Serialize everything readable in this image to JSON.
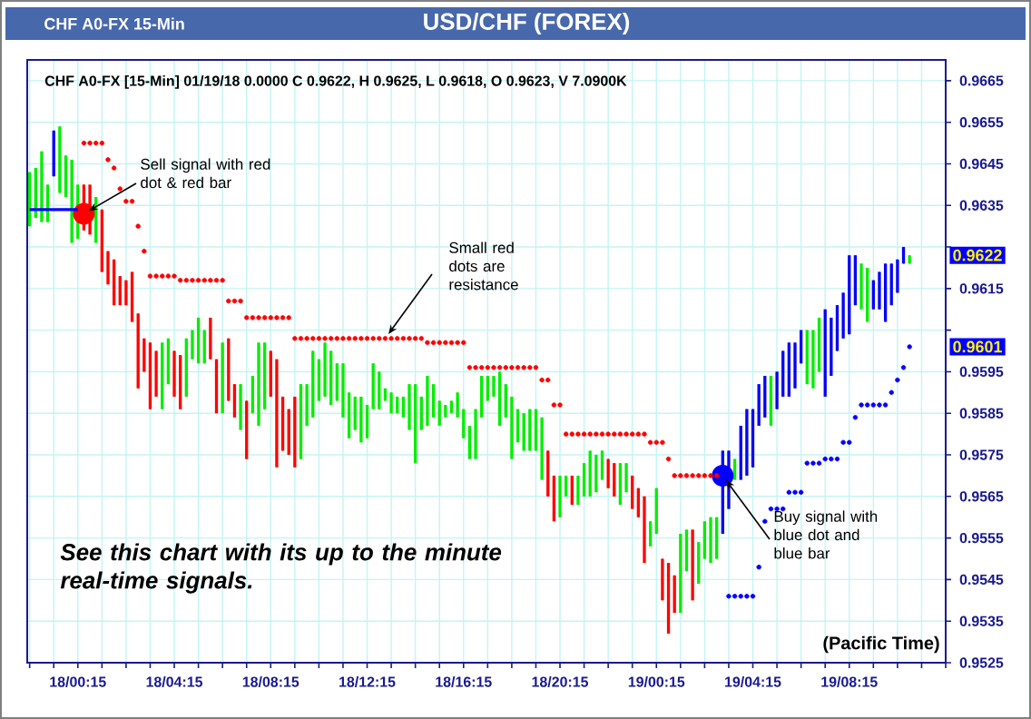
{
  "chart_data": {
    "type": "candlestick",
    "title": "USD/CHF (FOREX)",
    "subtitle": "CHF A0-FX [15-Min] 01/19/18  0.0000 C 0.9622, H 0.9625, L 0.9618, O 0.9623, V 7.0900K",
    "annotations": [
      "CHF A0-FX 15-Min",
      "Sell signal with red dot & red bar",
      "Small red dots are resistance",
      "Buy signal with blue dot and blue bar",
      "See this chart with its up to the minute real-time signals.",
      "(Pacific Time)",
      "0.9622",
      "0.9601"
    ],
    "categories": [
      null,
      null,
      null,
      null,
      null,
      null,
      null,
      null,
      "18/00:15",
      null,
      null,
      null,
      null,
      null,
      null,
      null,
      null,
      null,
      null,
      null,
      null,
      null,
      null,
      null,
      "18/04:15",
      null,
      null,
      null,
      null,
      null,
      null,
      null,
      null,
      null,
      null,
      null,
      null,
      null,
      null,
      null,
      "18/08:15",
      null,
      null,
      null,
      null,
      null,
      null,
      null,
      null,
      null,
      null,
      null,
      null,
      null,
      null,
      null,
      "18/12:15",
      null,
      null,
      null,
      null,
      null,
      null,
      null,
      null,
      null,
      null,
      null,
      null,
      null,
      null,
      null,
      "18/16:15",
      null,
      null,
      null,
      null,
      null,
      null,
      null,
      null,
      null,
      null,
      null,
      null,
      null,
      null,
      null,
      "18/20:15",
      null,
      null,
      null,
      null,
      null,
      null,
      null,
      null,
      null,
      null,
      null,
      null,
      null,
      null,
      null,
      "19/00:15",
      null,
      null,
      null,
      null,
      null,
      null,
      null,
      null,
      null,
      null,
      null,
      null,
      null,
      null,
      null,
      "19/04:15",
      null,
      null,
      null,
      null,
      null,
      null,
      null,
      null,
      null,
      null,
      null,
      null,
      null,
      null,
      null,
      "19/08:15",
      null,
      null,
      null,
      null,
      null,
      null,
      null,
      null,
      null,
      null
    ],
    "ohlc": [
      [
        0.963,
        0.9643,
        0.963,
        0.9643
      ],
      [
        0.9632,
        0.9644,
        0.9632,
        0.9644
      ],
      [
        0.9631,
        0.9648,
        0.9631,
        0.9648
      ],
      [
        0.9631,
        0.964,
        0.9631,
        0.964
      ],
      [
        0.9642,
        0.9653,
        0.9642,
        0.9653
      ],
      [
        0.9638,
        0.9654,
        0.9638,
        0.9654
      ],
      [
        0.9637,
        0.9647,
        0.9637,
        0.9647
      ],
      [
        0.9626,
        0.9646,
        0.9626,
        0.9646
      ],
      [
        0.9627,
        0.964,
        0.9627,
        0.964
      ],
      [
        0.964,
        0.964,
        0.9629,
        0.9629
      ],
      [
        0.964,
        0.964,
        0.9628,
        0.9628
      ],
      [
        0.9626,
        0.9637,
        0.9626,
        0.9637
      ],
      [
        0.9634,
        0.9634,
        0.9619,
        0.9619
      ],
      [
        0.9624,
        0.9624,
        0.9616,
        0.9616
      ],
      [
        0.9622,
        0.9622,
        0.9611,
        0.9611
      ],
      [
        0.9618,
        0.9618,
        0.9611,
        0.9611
      ],
      [
        0.9617,
        0.9617,
        0.9611,
        0.9611
      ],
      [
        0.9619,
        0.9619,
        0.9607,
        0.9607
      ],
      [
        0.9609,
        0.9609,
        0.9591,
        0.9591
      ],
      [
        0.9603,
        0.9603,
        0.9595,
        0.9595
      ],
      [
        0.9602,
        0.9602,
        0.9586,
        0.9586
      ],
      [
        0.96,
        0.96,
        0.9589,
        0.9589
      ],
      [
        0.9586,
        0.9602,
        0.9586,
        0.9602
      ],
      [
        0.9592,
        0.9603,
        0.9592,
        0.9603
      ],
      [
        0.96,
        0.96,
        0.9589,
        0.9589
      ],
      [
        0.9599,
        0.9599,
        0.9586,
        0.9586
      ],
      [
        0.9589,
        0.9603,
        0.9589,
        0.9603
      ],
      [
        0.9598,
        0.9605,
        0.9598,
        0.9605
      ],
      [
        0.9597,
        0.9608,
        0.9597,
        0.9608
      ],
      [
        0.9597,
        0.9605,
        0.9597,
        0.9605
      ],
      [
        0.9608,
        0.9608,
        0.9598,
        0.9598
      ],
      [
        0.9598,
        0.9598,
        0.9585,
        0.9585
      ],
      [
        0.9585,
        0.9602,
        0.9585,
        0.9602
      ],
      [
        0.9603,
        0.9603,
        0.9588,
        0.9588
      ],
      [
        0.9592,
        0.9592,
        0.9584,
        0.9584
      ],
      [
        0.9581,
        0.9592,
        0.9581,
        0.9592
      ],
      [
        0.9588,
        0.9588,
        0.9574,
        0.9574
      ],
      [
        0.9585,
        0.9594,
        0.9585,
        0.9594
      ],
      [
        0.9582,
        0.9602,
        0.9582,
        0.9602
      ],
      [
        0.9586,
        0.9602,
        0.9586,
        0.9602
      ],
      [
        0.96,
        0.96,
        0.9589,
        0.9589
      ],
      [
        0.9598,
        0.9598,
        0.9572,
        0.9572
      ],
      [
        0.9589,
        0.9589,
        0.9576,
        0.9576
      ],
      [
        0.9586,
        0.9586,
        0.9575,
        0.9575
      ],
      [
        0.9589,
        0.9589,
        0.9572,
        0.9572
      ],
      [
        0.9574,
        0.9592,
        0.9574,
        0.9592
      ],
      [
        0.9582,
        0.9592,
        0.9582,
        0.9592
      ],
      [
        0.9584,
        0.96,
        0.9584,
        0.96
      ],
      [
        0.9588,
        0.9598,
        0.9588,
        0.9598
      ],
      [
        0.9589,
        0.9602,
        0.9589,
        0.9602
      ],
      [
        0.9587,
        0.96,
        0.9587,
        0.96
      ],
      [
        0.9588,
        0.9597,
        0.9588,
        0.9597
      ],
      [
        0.9584,
        0.9597,
        0.9584,
        0.9597
      ],
      [
        0.9579,
        0.959,
        0.9579,
        0.959
      ],
      [
        0.9581,
        0.9589,
        0.9581,
        0.9589
      ],
      [
        0.9578,
        0.9589,
        0.9578,
        0.9589
      ],
      [
        0.9579,
        0.9587,
        0.9579,
        0.9587
      ],
      [
        0.9586,
        0.9597,
        0.9586,
        0.9597
      ],
      [
        0.9586,
        0.9595,
        0.9586,
        0.9595
      ],
      [
        0.9588,
        0.9591,
        0.9588,
        0.9591
      ],
      [
        0.9585,
        0.959,
        0.9585,
        0.959
      ],
      [
        0.9585,
        0.9589,
        0.9585,
        0.9589
      ],
      [
        0.9584,
        0.9589,
        0.9584,
        0.9589
      ],
      [
        0.9581,
        0.9592,
        0.9581,
        0.9592
      ],
      [
        0.9573,
        0.9592,
        0.9573,
        0.9592
      ],
      [
        0.9581,
        0.9589,
        0.9581,
        0.9589
      ],
      [
        0.9582,
        0.9594,
        0.9582,
        0.9594
      ],
      [
        0.9584,
        0.9592,
        0.9584,
        0.9592
      ],
      [
        0.9582,
        0.9588,
        0.9582,
        0.9588
      ],
      [
        0.9584,
        0.9587,
        0.9584,
        0.9587
      ],
      [
        0.9585,
        0.9588,
        0.9585,
        0.9588
      ],
      [
        0.9584,
        0.959,
        0.9584,
        0.959
      ],
      [
        0.9579,
        0.9586,
        0.9579,
        0.9586
      ],
      [
        0.9574,
        0.9582,
        0.9574,
        0.9582
      ],
      [
        0.9574,
        0.9586,
        0.9574,
        0.9586
      ],
      [
        0.9584,
        0.9594,
        0.9584,
        0.9594
      ],
      [
        0.9588,
        0.9594,
        0.9588,
        0.9594
      ],
      [
        0.9589,
        0.9594,
        0.9589,
        0.9594
      ],
      [
        0.9582,
        0.9595,
        0.9582,
        0.9595
      ],
      [
        0.9584,
        0.9592,
        0.9584,
        0.9592
      ],
      [
        0.9574,
        0.9589,
        0.9574,
        0.9589
      ],
      [
        0.9578,
        0.9586,
        0.9578,
        0.9586
      ],
      [
        0.9576,
        0.9585,
        0.9576,
        0.9585
      ],
      [
        0.9576,
        0.9586,
        0.9576,
        0.9586
      ],
      [
        0.9576,
        0.9586,
        0.9576,
        0.9586
      ],
      [
        0.9569,
        0.9584,
        0.9569,
        0.9584
      ],
      [
        0.9576,
        0.9576,
        0.9565,
        0.9565
      ],
      [
        0.957,
        0.957,
        0.9559,
        0.9559
      ],
      [
        0.956,
        0.957,
        0.956,
        0.957
      ],
      [
        0.9565,
        0.957,
        0.9565,
        0.957
      ],
      [
        0.957,
        0.957,
        0.9563,
        0.9563
      ],
      [
        0.9563,
        0.957,
        0.9563,
        0.957
      ],
      [
        0.9565,
        0.9573,
        0.9565,
        0.9573
      ],
      [
        0.9565,
        0.9576,
        0.9565,
        0.9576
      ],
      [
        0.9566,
        0.9575,
        0.9566,
        0.9575
      ],
      [
        0.9569,
        0.9576,
        0.9569,
        0.9576
      ],
      [
        0.9574,
        0.9574,
        0.9567,
        0.9567
      ],
      [
        0.9573,
        0.9573,
        0.9565,
        0.9565
      ],
      [
        0.9563,
        0.9573,
        0.9563,
        0.9573
      ],
      [
        0.9566,
        0.9573,
        0.9566,
        0.9573
      ],
      [
        0.957,
        0.957,
        0.9562,
        0.9562
      ],
      [
        0.9567,
        0.9567,
        0.956,
        0.956
      ],
      [
        0.9565,
        0.9565,
        0.9549,
        0.9549
      ],
      [
        0.9553,
        0.9559,
        0.9553,
        0.9559
      ],
      [
        0.9556,
        0.9567,
        0.9556,
        0.9567
      ],
      [
        0.955,
        0.955,
        0.954,
        0.954
      ],
      [
        0.9549,
        0.9549,
        0.9532,
        0.9532
      ],
      [
        0.9546,
        0.9546,
        0.9537,
        0.9537
      ],
      [
        0.9537,
        0.9556,
        0.9537,
        0.9556
      ],
      [
        0.9547,
        0.9557,
        0.9547,
        0.9557
      ],
      [
        0.9557,
        0.9557,
        0.954,
        0.954
      ],
      [
        0.9544,
        0.9554,
        0.9544,
        0.9554
      ],
      [
        0.955,
        0.9559,
        0.955,
        0.9559
      ],
      [
        0.9549,
        0.956,
        0.9549,
        0.956
      ],
      [
        0.955,
        0.956,
        0.955,
        0.956
      ],
      [
        0.9556,
        0.9576,
        0.9556,
        0.9576
      ],
      [
        0.9562,
        0.9576,
        0.9562,
        0.9576
      ],
      [
        0.9569,
        0.9574,
        0.9569,
        0.9574
      ],
      [
        0.9569,
        0.9582,
        0.9569,
        0.9582
      ],
      [
        0.957,
        0.9586,
        0.957,
        0.9586
      ],
      [
        0.9572,
        0.9586,
        0.9572,
        0.9586
      ],
      [
        0.9582,
        0.9592,
        0.9582,
        0.9592
      ],
      [
        0.9584,
        0.9594,
        0.9584,
        0.9594
      ],
      [
        0.9582,
        0.9594,
        0.9582,
        0.9594
      ],
      [
        0.9586,
        0.9595,
        0.9586,
        0.9595
      ],
      [
        0.9589,
        0.96,
        0.9589,
        0.96
      ],
      [
        0.9589,
        0.9602,
        0.9589,
        0.9602
      ],
      [
        0.9591,
        0.9602,
        0.9591,
        0.9602
      ],
      [
        0.9597,
        0.9605,
        0.9597,
        0.9605
      ],
      [
        0.9592,
        0.9605,
        0.9592,
        0.9605
      ],
      [
        0.9591,
        0.9605,
        0.9591,
        0.9605
      ],
      [
        0.9595,
        0.9608,
        0.9595,
        0.9608
      ],
      [
        0.9589,
        0.961,
        0.9589,
        0.961
      ],
      [
        0.9594,
        0.9608,
        0.9594,
        0.9608
      ],
      [
        0.96,
        0.9611,
        0.96,
        0.9611
      ],
      [
        0.9603,
        0.9614,
        0.9603,
        0.9614
      ],
      [
        0.9604,
        0.9623,
        0.9604,
        0.9623
      ],
      [
        0.9611,
        0.9623,
        0.9611,
        0.9623
      ],
      [
        0.961,
        0.9621,
        0.961,
        0.9621
      ],
      [
        0.9607,
        0.962,
        0.9607,
        0.962
      ],
      [
        0.961,
        0.9617,
        0.961,
        0.9617
      ],
      [
        0.961,
        0.9619,
        0.961,
        0.9619
      ],
      [
        0.9607,
        0.9621,
        0.9607,
        0.9621
      ],
      [
        0.9611,
        0.9621,
        0.9611,
        0.9621
      ],
      [
        0.9614,
        0.9622,
        0.9614,
        0.9622
      ],
      [
        0.9621,
        0.9625,
        0.9621,
        0.9625
      ],
      [
        0.9621,
        0.9623,
        0.9621,
        0.9623
      ]
    ],
    "colors": [
      "#00ee00",
      "#00ee00",
      "#00ee00",
      "#00ee00",
      "#0000ff",
      "#00ee00",
      "#00ee00",
      "#00ee00",
      "#00ee00",
      "#ff0000",
      "#ff0000",
      "#00ee00",
      "#ff0000",
      "#ff0000",
      "#ff0000",
      "#ff0000",
      "#ff0000",
      "#ff0000",
      "#ff0000",
      "#ff0000",
      "#ff0000",
      "#ff0000",
      "#00ee00",
      "#00ee00",
      "#ff0000",
      "#ff0000",
      "#00ee00",
      "#00ee00",
      "#00ee00",
      "#00ee00",
      "#ff0000",
      "#ff0000",
      "#00ee00",
      "#ff0000",
      "#ff0000",
      "#00ee00",
      "#ff0000",
      "#00ee00",
      "#00ee00",
      "#00ee00",
      "#ff0000",
      "#ff0000",
      "#ff0000",
      "#ff0000",
      "#ff0000",
      "#00ee00",
      "#00ee00",
      "#00ee00",
      "#00ee00",
      "#00ee00",
      "#00ee00",
      "#00ee00",
      "#00ee00",
      "#00ee00",
      "#00ee00",
      "#00ee00",
      "#00ee00",
      "#00ee00",
      "#00ee00",
      "#00ee00",
      "#00ee00",
      "#00ee00",
      "#00ee00",
      "#00ee00",
      "#00ee00",
      "#00ee00",
      "#00ee00",
      "#00ee00",
      "#00ee00",
      "#00ee00",
      "#00ee00",
      "#00ee00",
      "#00ee00",
      "#00ee00",
      "#00ee00",
      "#00ee00",
      "#00ee00",
      "#00ee00",
      "#00ee00",
      "#00ee00",
      "#00ee00",
      "#00ee00",
      "#00ee00",
      "#00ee00",
      "#00ee00",
      "#00ee00",
      "#ff0000",
      "#ff0000",
      "#00ee00",
      "#00ee00",
      "#ff0000",
      "#00ee00",
      "#00ee00",
      "#00ee00",
      "#00ee00",
      "#00ee00",
      "#ff0000",
      "#ff0000",
      "#00ee00",
      "#00ee00",
      "#ff0000",
      "#ff0000",
      "#ff0000",
      "#00ee00",
      "#00ee00",
      "#ff0000",
      "#ff0000",
      "#ff0000",
      "#00ee00",
      "#00ee00",
      "#ff0000",
      "#00ee00",
      "#00ee00",
      "#00ee00",
      "#00ee00",
      "#0000ff",
      "#0000ff",
      "#00ee00",
      "#0000ff",
      "#0000ff",
      "#0000ff",
      "#0000ff",
      "#0000ff",
      "#00ee00",
      "#0000ff",
      "#0000ff",
      "#0000ff",
      "#0000ff",
      "#0000ff",
      "#00ee00",
      "#00ee00",
      "#00ee00",
      "#0000ff",
      "#0000ff",
      "#0000ff",
      "#0000ff",
      "#0000ff",
      "#0000ff",
      "#00ee00",
      "#00ee00",
      "#0000ff",
      "#0000ff",
      "#0000ff",
      "#0000ff",
      "#0000ff",
      "#0000ff",
      "#00ee00"
    ],
    "series": [
      {
        "type": "scatter",
        "marker": "circle",
        "color": "#ff0000",
        "values": [
          null,
          null,
          null,
          null,
          null,
          null,
          null,
          null,
          null,
          0.965,
          0.965,
          0.965,
          0.965,
          0.9646,
          0.9644,
          0.9639,
          0.9636,
          0.9636,
          0.963,
          0.9624,
          0.9618,
          0.9618,
          0.9618,
          0.9618,
          0.9618,
          0.9617,
          0.9617,
          0.9617,
          0.9617,
          0.9617,
          0.9617,
          0.9617,
          0.9617,
          0.9612,
          0.9612,
          0.9612,
          0.9608,
          0.9608,
          0.9608,
          0.9608,
          0.9608,
          0.9608,
          0.9608,
          0.9608,
          0.9603,
          0.9603,
          0.9603,
          0.9603,
          0.9603,
          0.9603,
          0.9603,
          0.9603,
          0.9603,
          0.9603,
          0.9603,
          0.9603,
          0.9603,
          0.9603,
          0.9603,
          0.9603,
          0.9603,
          0.9603,
          0.9603,
          0.9603,
          0.9603,
          0.9603,
          0.9602,
          0.9602,
          0.9602,
          0.9602,
          0.9602,
          0.9602,
          0.9602,
          0.9596,
          0.9596,
          0.9596,
          0.9596,
          0.9596,
          0.9596,
          0.9596,
          0.9596,
          0.9596,
          0.9596,
          0.9596,
          0.9596,
          0.9593,
          0.9593,
          0.9587,
          0.9587,
          0.958,
          0.958,
          0.958,
          0.958,
          0.958,
          0.958,
          0.958,
          0.958,
          0.958,
          0.958,
          0.958,
          0.958,
          0.958,
          0.958,
          0.9578,
          0.9578,
          0.9578,
          0.9574,
          0.957,
          0.957,
          0.957,
          0.957,
          0.957,
          0.957,
          0.957,
          0.957,
          null,
          null,
          null,
          null,
          null,
          null,
          null,
          null,
          null,
          null,
          null,
          null,
          null,
          null,
          null,
          null,
          null,
          null,
          null,
          null,
          null,
          null,
          null,
          null,
          null,
          null,
          null,
          null,
          null,
          null,
          null,
          null
        ]
      },
      {
        "type": "scatter",
        "marker": "circle",
        "color": "#0000ff",
        "values": [
          null,
          null,
          null,
          null,
          null,
          null,
          null,
          null,
          null,
          null,
          null,
          null,
          null,
          null,
          null,
          null,
          null,
          null,
          null,
          null,
          null,
          null,
          null,
          null,
          null,
          null,
          null,
          null,
          null,
          null,
          null,
          null,
          null,
          null,
          null,
          null,
          null,
          null,
          null,
          null,
          null,
          null,
          null,
          null,
          null,
          null,
          null,
          null,
          null,
          null,
          null,
          null,
          null,
          null,
          null,
          null,
          null,
          null,
          null,
          null,
          null,
          null,
          null,
          null,
          null,
          null,
          null,
          null,
          null,
          null,
          null,
          null,
          null,
          null,
          null,
          null,
          null,
          null,
          null,
          null,
          null,
          null,
          null,
          null,
          null,
          null,
          null,
          null,
          null,
          null,
          null,
          null,
          null,
          null,
          null,
          null,
          null,
          null,
          null,
          null,
          null,
          null,
          null,
          null,
          null,
          null,
          null,
          null,
          null,
          null,
          null,
          null,
          null,
          null,
          null,
          null,
          0.9541,
          0.9541,
          0.9541,
          0.9541,
          0.9541,
          0.9548,
          0.9559,
          0.9562,
          0.9562,
          0.9562,
          0.9566,
          0.9566,
          0.9566,
          0.9573,
          0.9573,
          0.9573,
          0.9574,
          0.9574,
          0.9574,
          0.9578,
          0.9578,
          0.9584,
          0.9587,
          0.9587,
          0.9587,
          0.9587,
          0.9587,
          0.959,
          0.9593,
          0.9596,
          0.9601
        ]
      },
      {
        "type": "bubble",
        "color": "#ff0000",
        "values": [
          null,
          null,
          null,
          null,
          null,
          null,
          null,
          null,
          null,
          0.9633,
          null,
          null,
          null,
          null,
          null,
          null,
          null,
          null,
          null,
          null,
          null,
          null,
          null,
          null,
          null,
          null,
          null,
          null,
          null,
          null,
          null,
          null,
          null,
          null,
          null,
          null,
          null,
          null,
          null,
          null,
          null,
          null,
          null,
          null,
          null,
          null,
          null,
          null,
          null,
          null,
          null,
          null,
          null,
          null,
          null,
          null,
          null,
          null,
          null,
          null,
          null,
          null,
          null,
          null,
          null,
          null,
          null,
          null,
          null,
          null,
          null,
          null,
          null,
          null,
          null,
          null,
          null,
          null,
          null,
          null,
          null,
          null,
          null,
          null,
          null,
          null,
          null,
          null,
          null,
          null,
          null,
          null,
          null,
          null,
          null,
          null,
          null,
          null,
          null,
          null,
          null,
          null,
          null,
          null,
          null,
          null,
          null,
          null,
          null,
          null,
          null,
          null,
          null,
          null,
          null,
          null,
          null,
          null,
          null,
          null,
          null,
          null,
          null,
          null,
          null,
          null,
          null,
          null,
          null,
          null,
          null,
          null,
          null,
          null,
          null,
          null,
          null,
          null,
          null,
          null,
          null,
          null,
          null,
          null,
          null,
          null,
          null
        ],
        "sizes": [
          null,
          null,
          null,
          null,
          null,
          null,
          null,
          null,
          null,
          1,
          null,
          null,
          null,
          null,
          null,
          null,
          null,
          null,
          null,
          null,
          null,
          null,
          null,
          null,
          null,
          null,
          null,
          null,
          null,
          null,
          null,
          null,
          null,
          null,
          null,
          null,
          null,
          null,
          null,
          null,
          null,
          null,
          null,
          null,
          null,
          null,
          null,
          null,
          null,
          null,
          null,
          null,
          null,
          null,
          null,
          null,
          null,
          null,
          null,
          null,
          null,
          null,
          null,
          null,
          null,
          null,
          null,
          null,
          null,
          null,
          null,
          null,
          null,
          null,
          null,
          null,
          null,
          null,
          null,
          null,
          null,
          null,
          null,
          null,
          null,
          null,
          null,
          null,
          null,
          null,
          null,
          null,
          null,
          null,
          null,
          null,
          null,
          null,
          null,
          null,
          null,
          null,
          null,
          null,
          null,
          null,
          null,
          null,
          null,
          null,
          null,
          null,
          null,
          null,
          null,
          null,
          null,
          null,
          null,
          null,
          null,
          null,
          null,
          null,
          null,
          null,
          null,
          null,
          null,
          null,
          null,
          null,
          null,
          null,
          null,
          null,
          null,
          null,
          null,
          null,
          null,
          null,
          null,
          null,
          null,
          null,
          null
        ]
      },
      {
        "type": "bubble",
        "color": "#0000ff",
        "values": [
          null,
          null,
          null,
          null,
          null,
          null,
          null,
          null,
          null,
          null,
          null,
          null,
          null,
          null,
          null,
          null,
          null,
          null,
          null,
          null,
          null,
          null,
          null,
          null,
          null,
          null,
          null,
          null,
          null,
          null,
          null,
          null,
          null,
          null,
          null,
          null,
          null,
          null,
          null,
          null,
          null,
          null,
          null,
          null,
          null,
          null,
          null,
          null,
          null,
          null,
          null,
          null,
          null,
          null,
          null,
          null,
          null,
          null,
          null,
          null,
          null,
          null,
          null,
          null,
          null,
          null,
          null,
          null,
          null,
          null,
          null,
          null,
          null,
          null,
          null,
          null,
          null,
          null,
          null,
          null,
          null,
          null,
          null,
          null,
          null,
          null,
          null,
          null,
          null,
          null,
          null,
          null,
          null,
          null,
          null,
          null,
          null,
          null,
          null,
          null,
          null,
          null,
          null,
          null,
          null,
          null,
          null,
          null,
          null,
          null,
          null,
          null,
          null,
          null,
          null,
          0.957,
          null,
          null,
          null,
          null,
          null,
          null,
          null,
          null,
          null,
          null,
          null,
          null,
          null,
          null,
          null,
          null,
          null,
          null,
          null,
          null,
          null,
          null,
          null,
          null,
          null,
          null,
          null,
          null,
          null,
          null,
          null
        ],
        "sizes": [
          null,
          null,
          null,
          null,
          null,
          null,
          null,
          null,
          null,
          null,
          null,
          null,
          null,
          null,
          null,
          null,
          null,
          null,
          null,
          null,
          null,
          null,
          null,
          null,
          null,
          null,
          null,
          null,
          null,
          null,
          null,
          null,
          null,
          null,
          null,
          null,
          null,
          null,
          null,
          null,
          null,
          null,
          null,
          null,
          null,
          null,
          null,
          null,
          null,
          null,
          null,
          null,
          null,
          null,
          null,
          null,
          null,
          null,
          null,
          null,
          null,
          null,
          null,
          null,
          null,
          null,
          null,
          null,
          null,
          null,
          null,
          null,
          null,
          null,
          null,
          null,
          null,
          null,
          null,
          null,
          null,
          null,
          null,
          null,
          null,
          null,
          null,
          null,
          null,
          null,
          null,
          null,
          null,
          null,
          null,
          null,
          null,
          null,
          null,
          null,
          null,
          null,
          null,
          null,
          null,
          null,
          null,
          null,
          null,
          null,
          null,
          null,
          null,
          null,
          null,
          1,
          null,
          null,
          null,
          null,
          null,
          null,
          null,
          null,
          null,
          null,
          null,
          null,
          null,
          null,
          null,
          null,
          null,
          null,
          null,
          null,
          null,
          null,
          null,
          null,
          null,
          null,
          null,
          null,
          null,
          null,
          null
        ]
      },
      {
        "type": "line",
        "line_style": "solid",
        "color": "#0000ff",
        "values": [
          0.9634,
          0.9634,
          0.9634,
          0.9634,
          0.9634,
          0.9634,
          0.9634,
          0.9634,
          0.9634,
          null,
          null,
          null,
          null,
          null,
          null,
          null,
          null,
          null,
          null,
          null,
          null,
          null,
          null,
          null,
          null,
          null,
          null,
          null,
          null,
          null,
          null,
          null,
          null,
          null,
          null,
          null,
          null,
          null,
          null,
          null,
          null,
          null,
          null,
          null,
          null,
          null,
          null,
          null,
          null,
          null,
          null,
          null,
          null,
          null,
          null,
          null,
          null,
          null,
          null,
          null,
          null,
          null,
          null,
          null,
          null,
          null,
          null,
          null,
          null,
          null,
          null,
          null,
          null,
          null,
          null,
          null,
          null,
          null,
          null,
          null,
          null,
          null,
          null,
          null,
          null,
          null,
          null,
          null,
          null,
          null,
          null,
          null,
          null,
          null,
          null,
          null,
          null,
          null,
          null,
          null,
          null,
          null,
          null,
          null,
          null,
          null,
          null,
          null,
          null,
          null,
          null,
          null,
          null,
          null,
          null,
          null,
          null,
          null,
          null,
          null,
          null,
          null,
          null,
          null,
          null,
          null,
          null,
          null,
          null,
          null,
          null,
          null,
          null,
          null,
          null,
          null,
          null,
          null,
          null,
          null,
          null,
          null,
          null,
          null,
          null,
          null,
          null
        ]
      }
    ],
    "ylim": [
      0.9525,
      0.967
    ],
    "yticks": [
      0.9525,
      0.9535,
      0.9545,
      0.9555,
      0.9565,
      0.9575,
      0.9585,
      0.9595,
      {
        "value": 0.9605,
        "label": null
      },
      0.9615,
      {
        "value": 0.9625,
        "label": null
      },
      0.9635,
      0.9645,
      0.9655,
      0.9665
    ],
    "grid": true
  }
}
